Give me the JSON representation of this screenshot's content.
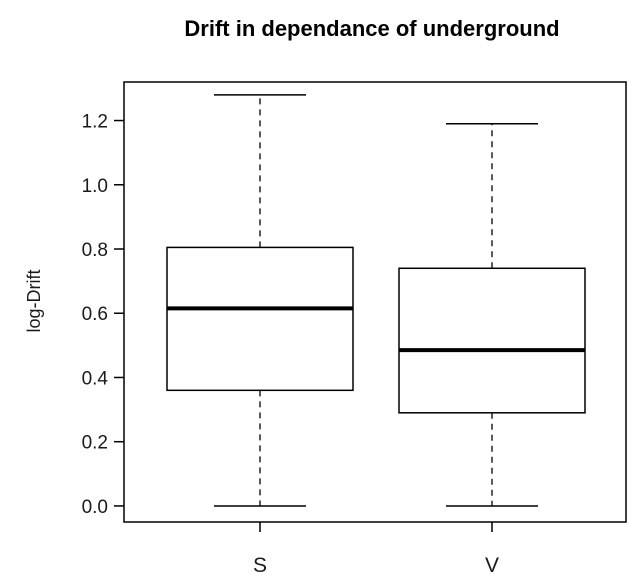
{
  "chart_data": {
    "type": "boxplot",
    "title": "Drift in dependance of underground",
    "xlabel": "",
    "ylabel": "log-Drift",
    "ylim": [
      -0.05,
      1.32
    ],
    "yticks": [
      0.0,
      0.2,
      0.4,
      0.6,
      0.8,
      1.0,
      1.2
    ],
    "ytick_labels": [
      "0.0",
      "0.2",
      "0.4",
      "0.6",
      "0.8",
      "1.0",
      "1.2"
    ],
    "categories": [
      "S",
      "V"
    ],
    "boxes": [
      {
        "category": "S",
        "min": 0.0,
        "q1": 0.36,
        "median": 0.615,
        "q3": 0.805,
        "max": 1.28
      },
      {
        "category": "V",
        "min": 0.0,
        "q1": 0.29,
        "median": 0.485,
        "q3": 0.74,
        "max": 1.19
      }
    ],
    "grid": false,
    "colors": {
      "box_fill": "#ffffff",
      "stroke": "#000000"
    }
  }
}
